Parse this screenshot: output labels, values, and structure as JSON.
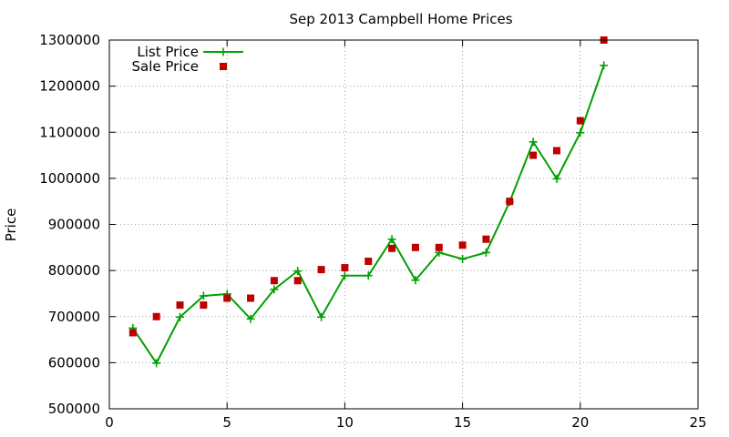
{
  "chart_data": {
    "type": "line",
    "title": "Sep 2013 Campbell Home Prices",
    "xlabel": "",
    "ylabel": "Price",
    "xlim": [
      0,
      25
    ],
    "ylim": [
      500000,
      1300000
    ],
    "xticks": [
      "0",
      "5",
      "10",
      "15",
      "20",
      "25"
    ],
    "yticks": [
      "500000",
      "600000",
      "700000",
      "800000",
      "900000",
      "1000000",
      "1100000",
      "1200000",
      "1300000"
    ],
    "grid": true,
    "legend_position": "top-left",
    "series": [
      {
        "name": "List Price",
        "style": "line-plus",
        "color": "#00a000",
        "x": [
          1,
          2,
          3,
          4,
          5,
          6,
          7,
          8,
          9,
          10,
          11,
          12,
          13,
          14,
          15,
          16,
          17,
          18,
          19,
          20,
          21
        ],
        "y": [
          675000,
          599000,
          699000,
          745000,
          749000,
          695000,
          759000,
          799000,
          699000,
          789000,
          789000,
          868000,
          779000,
          839000,
          825000,
          839000,
          949000,
          1079000,
          999000,
          1099000,
          1245000
        ]
      },
      {
        "name": "Sale Price",
        "style": "square-markers",
        "color": "#c00000",
        "x": [
          1,
          2,
          3,
          4,
          5,
          6,
          7,
          8,
          9,
          10,
          11,
          12,
          13,
          14,
          15,
          16,
          17,
          18,
          19,
          20,
          21
        ],
        "y": [
          665000,
          700000,
          725000,
          725000,
          740000,
          740000,
          778000,
          778000,
          802000,
          806000,
          820000,
          848000,
          850000,
          850000,
          855000,
          868000,
          950000,
          1050000,
          1060000,
          1125000,
          1300000
        ]
      }
    ]
  }
}
